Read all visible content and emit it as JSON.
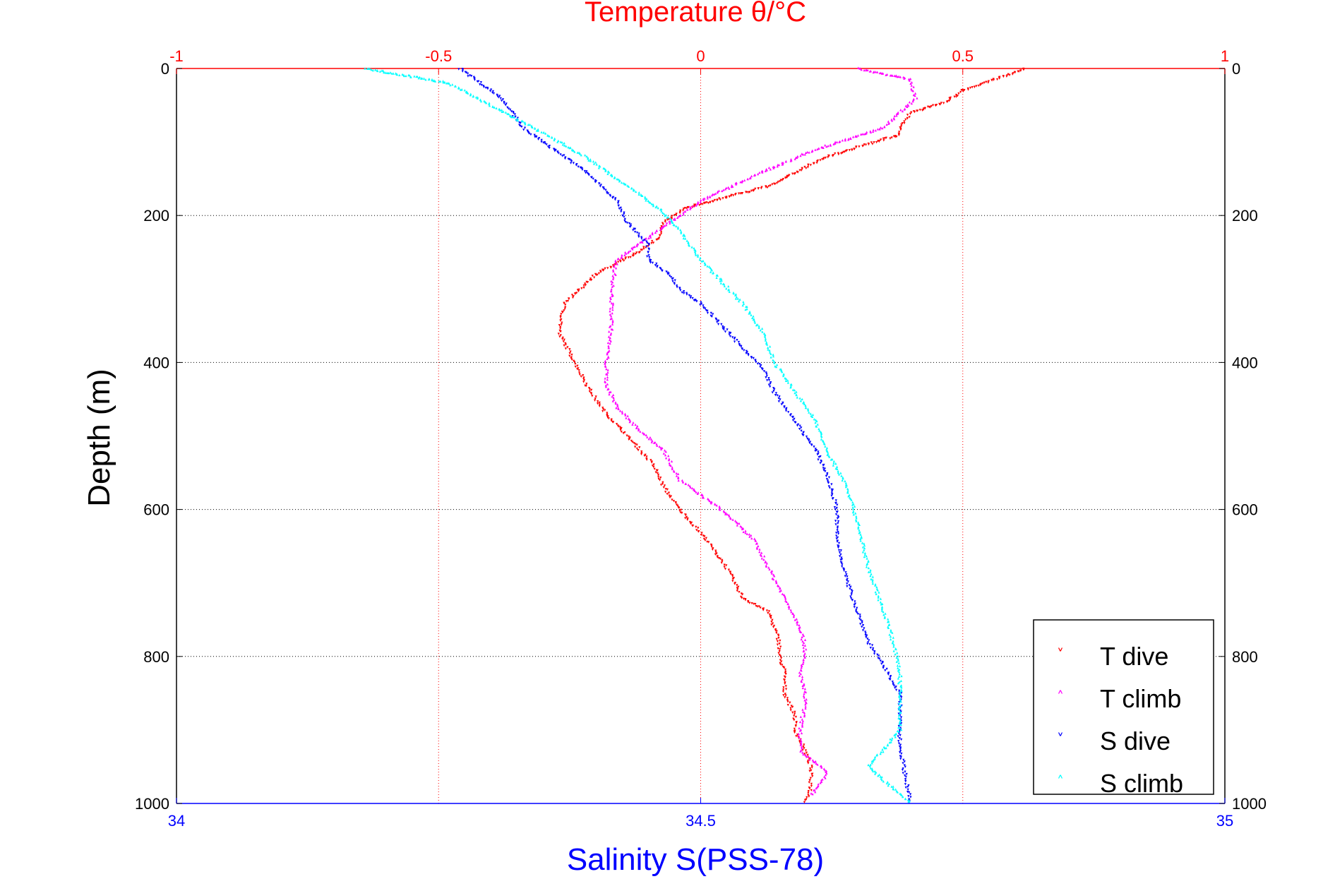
{
  "chart_data": {
    "type": "scatter",
    "title_top": "Temperature θ/°C",
    "xlabel_bottom": "Salinity S(PSS-78)",
    "ylabel": "Depth (m)",
    "top_axis": {
      "range": [
        -1,
        1
      ],
      "ticks": [
        "-1",
        "-0.5",
        "0",
        "0.5",
        "1"
      ],
      "tick_values": [
        -1,
        -0.5,
        0,
        0.5,
        1
      ],
      "color": "#ff0000"
    },
    "bottom_axis": {
      "range": [
        34,
        35
      ],
      "ticks": [
        "34",
        "34.5",
        "35"
      ],
      "tick_values": [
        34,
        34.5,
        35
      ],
      "color": "#0000ff"
    },
    "y_axis": {
      "range": [
        0,
        1000
      ],
      "reversed": true,
      "ticks": [
        "0",
        "200",
        "400",
        "600",
        "800",
        "1000"
      ],
      "tick_values": [
        0,
        200,
        400,
        600,
        800,
        1000
      ]
    },
    "grid": true,
    "legend_position": "bottom-right",
    "series": [
      {
        "name": "T dive",
        "axis": "top",
        "color": "#ff0000",
        "x": [
          0.62,
          0.5,
          0.47,
          0.4,
          0.38,
          0.38,
          0.24,
          0.13,
          -0.03,
          -0.07,
          -0.08,
          -0.12,
          -0.2,
          -0.26,
          -0.27,
          -0.24,
          -0.21,
          -0.18,
          -0.14,
          -0.09,
          -0.07,
          -0.04,
          0.01,
          0.05,
          0.08,
          0.13,
          0.15,
          0.15,
          0.16,
          0.16,
          0.18,
          0.18,
          0.2,
          0.21,
          0.21,
          0.2
        ],
        "y": [
          0,
          30,
          45,
          60,
          80,
          90,
          120,
          160,
          190,
          210,
          230,
          250,
          280,
          320,
          360,
          400,
          440,
          470,
          500,
          540,
          570,
          600,
          640,
          680,
          720,
          740,
          780,
          800,
          820,
          850,
          880,
          900,
          930,
          950,
          980,
          1000
        ]
      },
      {
        "name": "T climb",
        "axis": "top",
        "color": "#ff00ff",
        "x": [
          0.3,
          0.4,
          0.41,
          0.38,
          0.35,
          0.22,
          0.12,
          0.06,
          0.0,
          -0.06,
          -0.12,
          -0.16,
          -0.17,
          -0.17,
          -0.18,
          -0.18,
          -0.16,
          -0.12,
          -0.07,
          -0.04,
          0.04,
          0.1,
          0.13,
          0.16,
          0.19,
          0.2,
          0.19,
          0.2,
          0.19,
          0.19,
          0.23,
          0.24,
          0.21
        ],
        "y": [
          0,
          15,
          40,
          60,
          80,
          110,
          140,
          160,
          180,
          210,
          240,
          260,
          300,
          350,
          400,
          430,
          460,
          490,
          520,
          560,
          600,
          640,
          680,
          720,
          760,
          790,
          820,
          860,
          900,
          930,
          950,
          960,
          990
        ]
      },
      {
        "name": "S dive",
        "axis": "bottom",
        "color": "#0000ff",
        "x": [
          34.27,
          34.31,
          34.33,
          34.35,
          34.39,
          34.42,
          34.43,
          34.45,
          34.45,
          34.47,
          34.48,
          34.5,
          34.52,
          34.54,
          34.56,
          34.57,
          34.59,
          34.61,
          34.62,
          34.63,
          34.63,
          34.64,
          34.66,
          34.69,
          34.69,
          34.7
        ],
        "y": [
          0,
          40,
          80,
          100,
          140,
          180,
          210,
          240,
          260,
          280,
          300,
          320,
          350,
          380,
          410,
          440,
          480,
          520,
          550,
          600,
          640,
          700,
          780,
          850,
          920,
          1000
        ]
      },
      {
        "name": "S climb",
        "axis": "bottom",
        "color": "#00ffff",
        "x": [
          34.18,
          34.26,
          34.3,
          34.34,
          34.39,
          34.43,
          34.46,
          34.48,
          34.5,
          34.52,
          34.54,
          34.56,
          34.57,
          34.59,
          34.61,
          34.62,
          34.64,
          34.65,
          34.66,
          34.68,
          34.69,
          34.69,
          34.66,
          34.7
        ],
        "y": [
          0,
          20,
          50,
          80,
          120,
          160,
          190,
          220,
          260,
          290,
          320,
          360,
          400,
          440,
          480,
          520,
          570,
          620,
          680,
          760,
          820,
          900,
          950,
          1000
        ]
      }
    ]
  },
  "legend": {
    "entries": [
      {
        "label": "T dive",
        "marker": "˅",
        "color": "#ff0000"
      },
      {
        "label": "T climb",
        "marker": "˄",
        "color": "#ff00ff"
      },
      {
        "label": "S dive",
        "marker": "˅",
        "color": "#0000ff"
      },
      {
        "label": "S climb",
        "marker": "˄",
        "color": "#00ffff"
      }
    ]
  },
  "colors": {
    "top_axis": "#ff0000",
    "bottom_axis": "#0000ff",
    "grid": "#000000"
  }
}
